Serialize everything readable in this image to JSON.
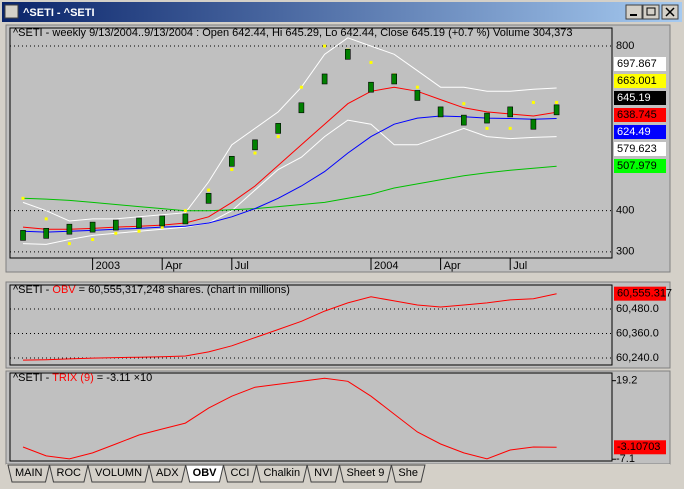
{
  "window": {
    "title": "^SETI - ^SETI"
  },
  "months": [
    null,
    null,
    null,
    "2003",
    null,
    null,
    "Apr",
    null,
    null,
    "Jul",
    null,
    null,
    null,
    null,
    null,
    "2004",
    null,
    null,
    "Apr",
    null,
    null,
    "Jul",
    null,
    null
  ],
  "panes": [
    {
      "header_parts": [
        "^SETI - weekly 9/13/2004..9/13/2004 : Open 642.44, Hi 645.29, Lo 642.44, Close 645.19 (+0.7 %) Volume 304,373"
      ],
      "header_colors": [
        "#000000"
      ],
      "ylim": [
        285,
        839
      ],
      "yticks": [
        800,
        400,
        300
      ],
      "grid": true,
      "series": [
        {
          "style": "line",
          "color": "#ffffff",
          "values": [
            420,
            400,
            375,
            380,
            380,
            385,
            390,
            395,
            470,
            560,
            600,
            640,
            700,
            780,
            820,
            800,
            780,
            740,
            700,
            700,
            690,
            690,
            695,
            698
          ]
        },
        {
          "style": "line",
          "color": "#ffffff",
          "values": [
            320,
            318,
            330,
            340,
            345,
            350,
            355,
            360,
            370,
            400,
            450,
            500,
            530,
            580,
            620,
            610,
            560,
            560,
            580,
            600,
            580,
            575,
            578,
            580
          ]
        },
        {
          "style": "line",
          "color": "#00c000",
          "values": [
            430,
            428,
            425,
            420,
            415,
            410,
            405,
            400,
            400,
            402,
            405,
            410,
            415,
            420,
            430,
            440,
            455,
            465,
            475,
            485,
            492,
            498,
            503,
            508
          ]
        },
        {
          "style": "line",
          "color": "#0000ff",
          "values": [
            350,
            348,
            350,
            352,
            355,
            357,
            360,
            362,
            370,
            385,
            405,
            430,
            460,
            495,
            540,
            580,
            610,
            625,
            630,
            628,
            625,
            624,
            622,
            624
          ]
        },
        {
          "style": "line",
          "color": "#ff0000",
          "values": [
            360,
            355,
            355,
            357,
            360,
            362,
            365,
            370,
            385,
            420,
            460,
            510,
            560,
            610,
            660,
            690,
            700,
            690,
            670,
            650,
            640,
            635,
            630,
            639
          ]
        },
        {
          "style": "dots",
          "color": "#ffff00",
          "values": [
            430,
            380,
            320,
            330,
            345,
            350,
            360,
            400,
            450,
            500,
            540,
            580,
            700,
            800,
            790,
            760,
            730,
            700,
            640,
            660,
            600,
            600,
            663,
            663
          ]
        },
        {
          "style": "boxes",
          "color": "#008000",
          "values": [
            340,
            345,
            355,
            360,
            365,
            370,
            375,
            380,
            430,
            520,
            560,
            600,
            650,
            720,
            780,
            700,
            720,
            680,
            640,
            620,
            625,
            640,
            610,
            645
          ]
        }
      ],
      "last_values": [
        {
          "value": 697.867,
          "color": "#ffffff",
          "text_color": "#000000"
        },
        {
          "value": 663.001,
          "color": "#ffff00",
          "text_color": "#000000"
        },
        {
          "value": 645.19,
          "color": "#000000",
          "text_color": "#ffffff"
        },
        {
          "value": 638.745,
          "color": "#ff0000",
          "text_color": "#000000"
        },
        {
          "value": 624.49,
          "color": "#0000ff",
          "text_color": "#ffffff"
        },
        {
          "value": 579.623,
          "color": "#ffffff",
          "text_color": "#000000"
        },
        {
          "value": 507.979,
          "color": "#00ff00",
          "text_color": "#000000"
        }
      ]
    },
    {
      "header_parts": [
        "^SETI - ",
        "OBV",
        " = 60,555,317,248 shares. (chart in millions)"
      ],
      "header_colors": [
        "#000000",
        "#ff0000",
        "#000000"
      ],
      "ylim": [
        60206,
        60588
      ],
      "yticks": [
        {
          "value": 60480,
          "label": "60,480.0"
        },
        {
          "value": 60360,
          "label": "60,360.0"
        },
        {
          "value": 60240,
          "label": "60,240.0"
        }
      ],
      "grid": true,
      "series": [
        {
          "style": "line",
          "color": "#ff0000",
          "values": [
            60230,
            60232,
            60236,
            60240,
            60242,
            60244,
            60246,
            60250,
            60270,
            60300,
            60340,
            60380,
            60420,
            60470,
            60510,
            60540,
            60520,
            60500,
            60490,
            60500,
            60510,
            60525,
            60530,
            60555.317
          ]
        }
      ],
      "last_values": [
        {
          "value": 60555.317,
          "label": "60,555.317",
          "color": "#ff0000",
          "text_color": "#000000"
        }
      ]
    },
    {
      "header_parts": [
        "^SETI - ",
        "TRIX (9)",
        " = -3.11 ×10"
      ],
      "header_colors": [
        "#000000",
        "#ff0000",
        "#000000"
      ],
      "ylim": [
        -7.7,
        21.1
      ],
      "yticks": [
        19.2,
        -7.1
      ],
      "grid": false,
      "series": [
        {
          "style": "line",
          "color": "#ff0000",
          "values": [
            -3,
            -6,
            -7,
            -5,
            -2,
            1,
            3,
            5,
            10,
            14,
            17,
            18,
            19,
            20,
            19,
            14,
            8,
            2,
            -2,
            -5,
            -7,
            -4,
            -3,
            -3.10703
          ]
        }
      ],
      "last_values": [
        {
          "value": -3.10703,
          "color": "#ff0000",
          "text_color": "#000000"
        }
      ]
    }
  ],
  "tabs": [
    "MAIN",
    "ROC",
    "VOLUMN",
    "ADX",
    "OBV",
    "CCI",
    "Chalkin",
    "NVI",
    "Sheet 9",
    "She"
  ],
  "active_tab": 4
}
